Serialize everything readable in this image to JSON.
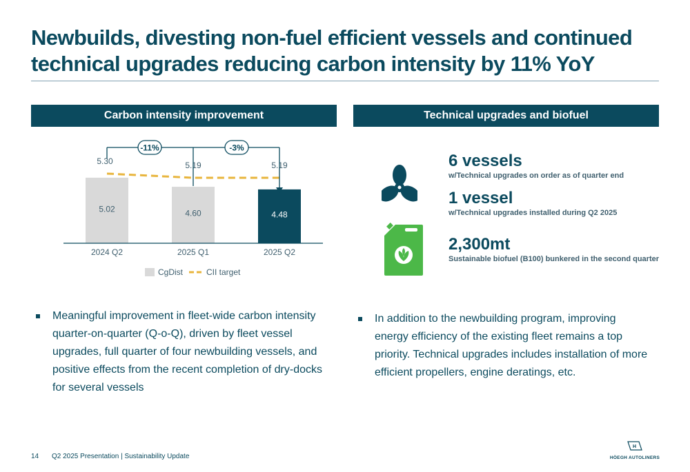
{
  "title": {
    "line1": "Newbuilds, divesting non-fuel efficient vessels and continued",
    "line2": "technical upgrades reducing carbon intensity by 11% YoY"
  },
  "left_section": {
    "header": "Carbon intensity improvement",
    "bullet": "Meaningful improvement in fleet-wide carbon intensity quarter-on-quarter (Q-o-Q), driven by fleet vessel upgrades, full quarter of four newbuilding vessels, and positive effects from the recent completion of dry-docks for several vessels"
  },
  "right_section": {
    "header": "Technical upgrades and biofuel",
    "stats": [
      {
        "value": "6 vessels",
        "desc": "w/Technical upgrades on order as of quarter end"
      },
      {
        "value": "1 vessel",
        "desc": "w/Technical upgrades installed during Q2 2025"
      },
      {
        "value": "2,300mt",
        "desc": "Sustainable biofuel (B100) bunkered in the second quarter"
      }
    ],
    "bullet": "In addition to the newbuilding program, improving energy efficiency of the existing fleet remains a top priority. Technical upgrades includes installation of more efficient propellers, engine deratings, etc."
  },
  "chart_data": {
    "type": "bar",
    "categories": [
      "2024 Q2",
      "2025 Q1",
      "2025 Q2"
    ],
    "series": [
      {
        "name": "CgDist",
        "values": [
          5.02,
          4.6,
          4.48
        ],
        "colors": [
          "#d9d9d9",
          "#d9d9d9",
          "#0b4a5e"
        ]
      },
      {
        "name": "CII target",
        "values": [
          5.3,
          5.19,
          5.19
        ],
        "color": "#e8b53d",
        "style": "dashed"
      }
    ],
    "value_labels": [
      "5.02",
      "4.60",
      "4.48"
    ],
    "target_labels": [
      "5.30",
      "5.19",
      "5.19"
    ],
    "annotations": [
      "-11%",
      "-3%"
    ],
    "legend": [
      "CgDist",
      "CII target"
    ],
    "legend_position": "bottom"
  },
  "footer": {
    "page_number": "14",
    "text": "Q2 2025 Presentation | Sustainability Update",
    "logo_text": "HÖEGH AUTOLINERS"
  },
  "colors": {
    "primary": "#0b4a5e",
    "bar_grey": "#d9d9d9",
    "target_line": "#e8b53d",
    "jerrycan_green": "#4cb848"
  },
  "icons": [
    "propeller-icon",
    "jerrycan-leaf-icon",
    "hoegh-logo-icon"
  ]
}
